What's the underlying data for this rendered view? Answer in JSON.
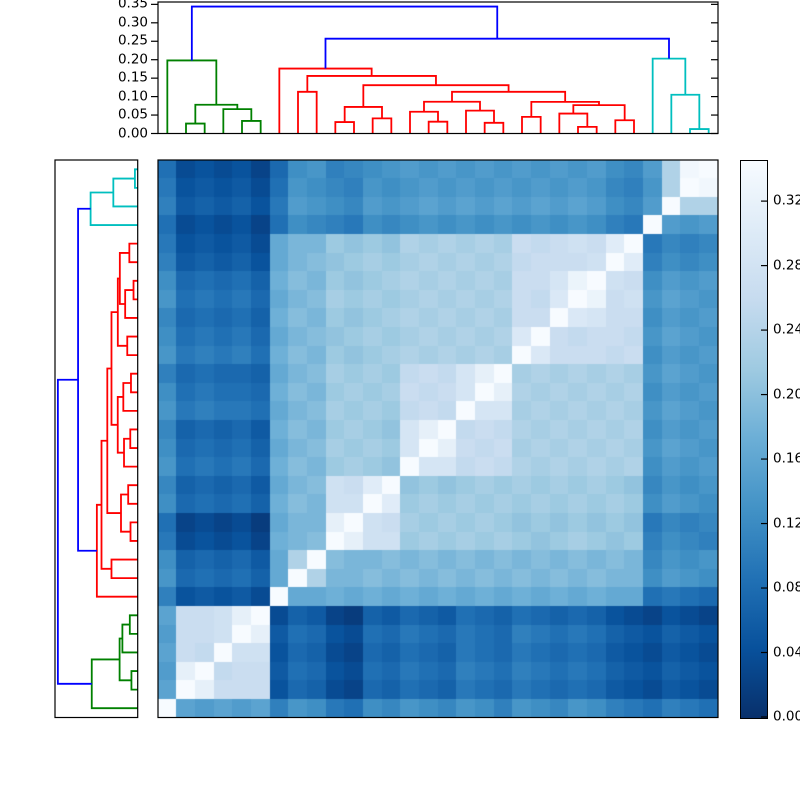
{
  "figure": {
    "title": "",
    "background": "#ffffff",
    "description": "Hierarchical clustering heatmap: top and left dendrograms flanking a 30x30 pairwise distance matrix with Blues colormap and vertical colorbar"
  },
  "chart_data": {
    "type": "heatmap",
    "title": "",
    "xlabel": "",
    "ylabel": "",
    "colormap": "Blues",
    "vmin": 0.0,
    "vmax": 0.3455,
    "n_leaves": 30,
    "column_order_left_to_right": "leaves 0 to 29 (dendrogram order)",
    "row_order_top_to_bottom": "leaves 29 down to 0 (reversed dendrogram order)",
    "top_axis": {
      "ticks": [
        "0.00",
        "0.05",
        "0.10",
        "0.15",
        "0.20",
        "0.25",
        "0.30",
        "0.35"
      ],
      "tick_values": [
        0.0,
        0.05,
        0.1,
        0.15,
        0.2,
        0.25,
        0.3,
        0.35
      ],
      "range": [
        0,
        0.3564
      ]
    },
    "colorbar": {
      "ticks": [
        "0.00",
        "0.04",
        "0.08",
        "0.12",
        "0.16",
        "0.20",
        "0.24",
        "0.28",
        "0.32"
      ],
      "tick_values": [
        0.0,
        0.04,
        0.08,
        0.12,
        0.16,
        0.2,
        0.24,
        0.28,
        0.32
      ],
      "range": [
        0,
        0.3455
      ],
      "stops": [
        "#f7fbff",
        "#deebf7",
        "#c6dbef",
        "#9ecae1",
        "#6baed6",
        "#4292c6",
        "#2171b5",
        "#08519c",
        "#08306b"
      ]
    },
    "dendrogram": {
      "colors": {
        "green": "#008000",
        "red": "#ff0000",
        "cyan": "#00bfbf",
        "blue": "#0000ff"
      },
      "clusters": {
        "green_leaves": [
          0,
          5
        ],
        "red_leaves": [
          6,
          25
        ],
        "cyan_leaves": [
          26,
          29
        ]
      },
      "links": [
        {
          "id": "g1",
          "a": "1",
          "b": "2",
          "h": 0.027,
          "c": "green"
        },
        {
          "id": "g2",
          "a": "4",
          "b": "5",
          "h": 0.034,
          "c": "green"
        },
        {
          "id": "g3",
          "a": "3",
          "b": "g2",
          "h": 0.066,
          "c": "green"
        },
        {
          "id": "g4",
          "a": "g1",
          "b": "g3",
          "h": 0.078,
          "c": "green"
        },
        {
          "id": "GR",
          "a": "0",
          "b": "g4",
          "h": 0.198,
          "c": "green"
        },
        {
          "id": "p1",
          "a": "9",
          "b": "10",
          "h": 0.031,
          "c": "red"
        },
        {
          "id": "p2",
          "a": "11",
          "b": "12",
          "h": 0.041,
          "c": "red"
        },
        {
          "id": "F",
          "a": "p1",
          "b": "p2",
          "h": 0.072,
          "c": "red"
        },
        {
          "id": "D",
          "a": "7",
          "b": "8",
          "h": 0.113,
          "c": "red"
        },
        {
          "id": "p3",
          "a": "14",
          "b": "15",
          "h": 0.032,
          "c": "red"
        },
        {
          "id": "H",
          "a": "13",
          "b": "p3",
          "h": 0.059,
          "c": "red"
        },
        {
          "id": "p4",
          "a": "17",
          "b": "18",
          "h": 0.029,
          "c": "red"
        },
        {
          "id": "H2",
          "a": "16",
          "b": "p4",
          "h": 0.062,
          "c": "red"
        },
        {
          "id": "K",
          "a": "H",
          "b": "H2",
          "h": 0.086,
          "c": "red"
        },
        {
          "id": "p5",
          "a": "19",
          "b": "20",
          "h": 0.045,
          "c": "red"
        },
        {
          "id": "p6",
          "a": "22",
          "b": "23",
          "h": 0.018,
          "c": "red"
        },
        {
          "id": "H3",
          "a": "21",
          "b": "p6",
          "h": 0.054,
          "c": "red"
        },
        {
          "id": "p7",
          "a": "24",
          "b": "25",
          "h": 0.036,
          "c": "red"
        },
        {
          "id": "K2",
          "a": "H3",
          "b": "p7",
          "h": 0.077,
          "c": "red"
        },
        {
          "id": "I2",
          "a": "p5",
          "b": "K2",
          "h": 0.0857,
          "c": "red"
        },
        {
          "id": "G",
          "a": "K",
          "b": "I2",
          "h": 0.113,
          "c": "red"
        },
        {
          "id": "E",
          "a": "F",
          "b": "G",
          "h": 0.131,
          "c": "red"
        },
        {
          "id": "C",
          "a": "D",
          "b": "E",
          "h": 0.156,
          "c": "red"
        },
        {
          "id": "R",
          "a": "6",
          "b": "C",
          "h": 0.176,
          "c": "red"
        },
        {
          "id": "c1",
          "a": "28",
          "b": "29",
          "h": 0.012,
          "c": "cyan"
        },
        {
          "id": "c2",
          "a": "27",
          "b": "c1",
          "h": 0.105,
          "c": "cyan"
        },
        {
          "id": "CR",
          "a": "26",
          "b": "c2",
          "h": 0.203,
          "c": "cyan"
        },
        {
          "id": "B1",
          "a": "R",
          "b": "CR",
          "h": 0.257,
          "c": "blue"
        },
        {
          "id": "B0",
          "a": "GR",
          "b": "B1",
          "h": 0.344,
          "c": "blue"
        }
      ]
    },
    "matrix": [
      [
        0,
        0.19,
        0.2,
        0.19,
        0.2,
        0.19,
        0.24,
        0.21,
        0.22,
        0.25,
        0.26,
        0.22,
        0.23,
        0.21,
        0.22,
        0.23,
        0.21,
        0.22,
        0.24,
        0.21,
        0.22,
        0.23,
        0.21,
        0.22,
        0.24,
        0.25,
        0.26,
        0.24,
        0.25,
        0.26
      ],
      [
        0.19,
        0,
        0.03,
        0.08,
        0.08,
        0.08,
        0.3,
        0.27,
        0.28,
        0.31,
        0.32,
        0.27,
        0.28,
        0.26,
        0.27,
        0.28,
        0.25,
        0.26,
        0.27,
        0.25,
        0.26,
        0.27,
        0.26,
        0.27,
        0.29,
        0.3,
        0.31,
        0.29,
        0.3,
        0.31
      ],
      [
        0.2,
        0.03,
        0,
        0.09,
        0.08,
        0.08,
        0.29,
        0.26,
        0.27,
        0.3,
        0.31,
        0.26,
        0.27,
        0.25,
        0.26,
        0.27,
        0.24,
        0.25,
        0.26,
        0.24,
        0.25,
        0.26,
        0.25,
        0.26,
        0.28,
        0.29,
        0.3,
        0.28,
        0.29,
        0.3
      ],
      [
        0.19,
        0.08,
        0.09,
        0,
        0.07,
        0.07,
        0.3,
        0.27,
        0.28,
        0.31,
        0.32,
        0.27,
        0.28,
        0.26,
        0.27,
        0.28,
        0.25,
        0.26,
        0.27,
        0.25,
        0.26,
        0.27,
        0.26,
        0.27,
        0.29,
        0.3,
        0.31,
        0.29,
        0.3,
        0.31
      ],
      [
        0.2,
        0.08,
        0.08,
        0.07,
        0,
        0.03,
        0.29,
        0.26,
        0.27,
        0.3,
        0.31,
        0.26,
        0.27,
        0.25,
        0.26,
        0.27,
        0.25,
        0.26,
        0.27,
        0.24,
        0.25,
        0.26,
        0.25,
        0.26,
        0.28,
        0.29,
        0.3,
        0.28,
        0.29,
        0.3
      ],
      [
        0.19,
        0.08,
        0.08,
        0.07,
        0.03,
        0,
        0.31,
        0.28,
        0.29,
        0.32,
        0.33,
        0.28,
        0.29,
        0.27,
        0.28,
        0.29,
        0.26,
        0.27,
        0.28,
        0.26,
        0.27,
        0.28,
        0.27,
        0.28,
        0.3,
        0.31,
        0.32,
        0.3,
        0.31,
        0.32
      ],
      [
        0.24,
        0.3,
        0.29,
        0.3,
        0.29,
        0.31,
        0,
        0.18,
        0.18,
        0.17,
        0.18,
        0.17,
        0.18,
        0.17,
        0.18,
        0.17,
        0.18,
        0.17,
        0.18,
        0.17,
        0.18,
        0.17,
        0.18,
        0.17,
        0.18,
        0.18,
        0.26,
        0.25,
        0.26,
        0.27
      ],
      [
        0.21,
        0.27,
        0.26,
        0.27,
        0.26,
        0.28,
        0.18,
        0,
        0.11,
        0.16,
        0.16,
        0.15,
        0.16,
        0.15,
        0.16,
        0.15,
        0.16,
        0.15,
        0.16,
        0.15,
        0.16,
        0.15,
        0.16,
        0.15,
        0.16,
        0.16,
        0.22,
        0.2,
        0.21,
        0.22
      ],
      [
        0.22,
        0.28,
        0.27,
        0.28,
        0.27,
        0.29,
        0.18,
        0.11,
        0,
        0.15,
        0.16,
        0.16,
        0.15,
        0.16,
        0.15,
        0.16,
        0.15,
        0.16,
        0.15,
        0.16,
        0.15,
        0.16,
        0.15,
        0.16,
        0.15,
        0.16,
        0.23,
        0.21,
        0.22,
        0.21
      ],
      [
        0.25,
        0.31,
        0.3,
        0.31,
        0.3,
        0.32,
        0.17,
        0.16,
        0.15,
        0,
        0.03,
        0.07,
        0.07,
        0.13,
        0.12,
        0.13,
        0.12,
        0.13,
        0.12,
        0.13,
        0.14,
        0.13,
        0.12,
        0.13,
        0.14,
        0.13,
        0.24,
        0.22,
        0.23,
        0.24
      ],
      [
        0.26,
        0.32,
        0.31,
        0.32,
        0.31,
        0.33,
        0.18,
        0.16,
        0.16,
        0.03,
        0,
        0.07,
        0.08,
        0.12,
        0.13,
        0.12,
        0.13,
        0.12,
        0.13,
        0.14,
        0.13,
        0.14,
        0.13,
        0.14,
        0.13,
        0.14,
        0.25,
        0.23,
        0.24,
        0.23
      ],
      [
        0.22,
        0.27,
        0.26,
        0.27,
        0.26,
        0.28,
        0.17,
        0.15,
        0.16,
        0.07,
        0.07,
        0,
        0.04,
        0.13,
        0.12,
        0.13,
        0.12,
        0.13,
        0.12,
        0.13,
        0.12,
        0.13,
        0.12,
        0.13,
        0.12,
        0.13,
        0.22,
        0.2,
        0.21,
        0.22
      ],
      [
        0.23,
        0.28,
        0.27,
        0.28,
        0.27,
        0.29,
        0.18,
        0.16,
        0.15,
        0.07,
        0.08,
        0.04,
        0,
        0.14,
        0.13,
        0.14,
        0.13,
        0.12,
        0.13,
        0.12,
        0.13,
        0.12,
        0.13,
        0.12,
        0.13,
        0.14,
        0.23,
        0.21,
        0.22,
        0.21
      ],
      [
        0.21,
        0.26,
        0.25,
        0.26,
        0.25,
        0.27,
        0.17,
        0.15,
        0.16,
        0.13,
        0.12,
        0.13,
        0.14,
        0,
        0.06,
        0.06,
        0.09,
        0.08,
        0.09,
        0.11,
        0.12,
        0.11,
        0.12,
        0.11,
        0.12,
        0.11,
        0.22,
        0.2,
        0.21,
        0.2
      ],
      [
        0.22,
        0.27,
        0.26,
        0.27,
        0.26,
        0.28,
        0.18,
        0.16,
        0.15,
        0.12,
        0.13,
        0.12,
        0.13,
        0.06,
        0,
        0.03,
        0.08,
        0.09,
        0.08,
        0.12,
        0.11,
        0.12,
        0.11,
        0.12,
        0.11,
        0.12,
        0.21,
        0.19,
        0.2,
        0.21
      ],
      [
        0.23,
        0.28,
        0.27,
        0.28,
        0.27,
        0.29,
        0.17,
        0.15,
        0.16,
        0.13,
        0.12,
        0.13,
        0.14,
        0.06,
        0.03,
        0,
        0.09,
        0.08,
        0.09,
        0.11,
        0.12,
        0.11,
        0.12,
        0.11,
        0.12,
        0.11,
        0.22,
        0.2,
        0.21,
        0.2
      ],
      [
        0.21,
        0.25,
        0.24,
        0.25,
        0.25,
        0.26,
        0.18,
        0.16,
        0.15,
        0.12,
        0.13,
        0.12,
        0.13,
        0.09,
        0.08,
        0.09,
        0,
        0.06,
        0.06,
        0.12,
        0.11,
        0.12,
        0.11,
        0.12,
        0.11,
        0.12,
        0.21,
        0.19,
        0.2,
        0.21
      ],
      [
        0.22,
        0.26,
        0.25,
        0.26,
        0.26,
        0.27,
        0.17,
        0.15,
        0.16,
        0.13,
        0.12,
        0.13,
        0.12,
        0.08,
        0.09,
        0.08,
        0.06,
        0,
        0.03,
        0.11,
        0.12,
        0.11,
        0.12,
        0.11,
        0.12,
        0.11,
        0.22,
        0.2,
        0.21,
        0.2
      ],
      [
        0.24,
        0.27,
        0.26,
        0.27,
        0.27,
        0.28,
        0.18,
        0.16,
        0.15,
        0.12,
        0.13,
        0.12,
        0.13,
        0.09,
        0.08,
        0.09,
        0.06,
        0.03,
        0,
        0.12,
        0.11,
        0.12,
        0.11,
        0.12,
        0.11,
        0.12,
        0.21,
        0.19,
        0.2,
        0.21
      ],
      [
        0.21,
        0.25,
        0.24,
        0.25,
        0.24,
        0.26,
        0.17,
        0.15,
        0.16,
        0.13,
        0.14,
        0.13,
        0.12,
        0.11,
        0.12,
        0.11,
        0.12,
        0.11,
        0.12,
        0,
        0.05,
        0.08,
        0.08,
        0.08,
        0.09,
        0.08,
        0.22,
        0.2,
        0.21,
        0.2
      ],
      [
        0.22,
        0.26,
        0.25,
        0.26,
        0.25,
        0.27,
        0.18,
        0.16,
        0.15,
        0.14,
        0.13,
        0.12,
        0.13,
        0.12,
        0.11,
        0.12,
        0.11,
        0.12,
        0.11,
        0.05,
        0,
        0.08,
        0.09,
        0.08,
        0.08,
        0.09,
        0.21,
        0.19,
        0.2,
        0.21
      ],
      [
        0.23,
        0.27,
        0.26,
        0.27,
        0.26,
        0.28,
        0.17,
        0.15,
        0.16,
        0.13,
        0.14,
        0.13,
        0.12,
        0.11,
        0.12,
        0.11,
        0.12,
        0.11,
        0.12,
        0.08,
        0.08,
        0,
        0.05,
        0.06,
        0.08,
        0.08,
        0.22,
        0.2,
        0.21,
        0.2
      ],
      [
        0.21,
        0.26,
        0.25,
        0.26,
        0.25,
        0.27,
        0.18,
        0.16,
        0.15,
        0.12,
        0.13,
        0.12,
        0.13,
        0.12,
        0.11,
        0.12,
        0.11,
        0.12,
        0.11,
        0.08,
        0.09,
        0.05,
        0,
        0.02,
        0.08,
        0.07,
        0.21,
        0.19,
        0.2,
        0.21
      ],
      [
        0.22,
        0.27,
        0.26,
        0.27,
        0.26,
        0.28,
        0.17,
        0.15,
        0.16,
        0.13,
        0.14,
        0.13,
        0.12,
        0.11,
        0.12,
        0.11,
        0.12,
        0.11,
        0.12,
        0.08,
        0.08,
        0.06,
        0.02,
        0,
        0.07,
        0.08,
        0.22,
        0.2,
        0.21,
        0.2
      ],
      [
        0.24,
        0.29,
        0.28,
        0.29,
        0.28,
        0.3,
        0.18,
        0.16,
        0.15,
        0.14,
        0.13,
        0.12,
        0.13,
        0.12,
        0.11,
        0.12,
        0.11,
        0.12,
        0.11,
        0.09,
        0.08,
        0.08,
        0.08,
        0.07,
        0,
        0.04,
        0.24,
        0.22,
        0.23,
        0.22
      ],
      [
        0.25,
        0.3,
        0.29,
        0.3,
        0.29,
        0.31,
        0.18,
        0.16,
        0.16,
        0.13,
        0.14,
        0.13,
        0.14,
        0.11,
        0.12,
        0.11,
        0.12,
        0.11,
        0.12,
        0.08,
        0.09,
        0.08,
        0.07,
        0.08,
        0.04,
        0,
        0.25,
        0.23,
        0.24,
        0.23
      ],
      [
        0.26,
        0.31,
        0.3,
        0.31,
        0.3,
        0.32,
        0.26,
        0.22,
        0.23,
        0.24,
        0.25,
        0.22,
        0.23,
        0.22,
        0.21,
        0.22,
        0.21,
        0.22,
        0.21,
        0.22,
        0.21,
        0.22,
        0.21,
        0.22,
        0.24,
        0.25,
        0,
        0.2,
        0.21,
        0.2
      ],
      [
        0.24,
        0.29,
        0.28,
        0.29,
        0.28,
        0.3,
        0.25,
        0.2,
        0.21,
        0.22,
        0.23,
        0.2,
        0.21,
        0.2,
        0.19,
        0.2,
        0.19,
        0.2,
        0.19,
        0.2,
        0.19,
        0.2,
        0.19,
        0.2,
        0.22,
        0.23,
        0.2,
        0,
        0.11,
        0.11
      ],
      [
        0.25,
        0.3,
        0.29,
        0.3,
        0.29,
        0.31,
        0.26,
        0.21,
        0.22,
        0.23,
        0.24,
        0.21,
        0.22,
        0.21,
        0.2,
        0.21,
        0.2,
        0.21,
        0.2,
        0.21,
        0.2,
        0.21,
        0.2,
        0.21,
        0.23,
        0.24,
        0.21,
        0.11,
        0,
        0.01
      ],
      [
        0.26,
        0.31,
        0.3,
        0.31,
        0.3,
        0.32,
        0.27,
        0.22,
        0.21,
        0.24,
        0.23,
        0.22,
        0.21,
        0.2,
        0.21,
        0.2,
        0.21,
        0.2,
        0.21,
        0.2,
        0.21,
        0.2,
        0.21,
        0.2,
        0.22,
        0.23,
        0.2,
        0.11,
        0.01,
        0
      ]
    ]
  }
}
